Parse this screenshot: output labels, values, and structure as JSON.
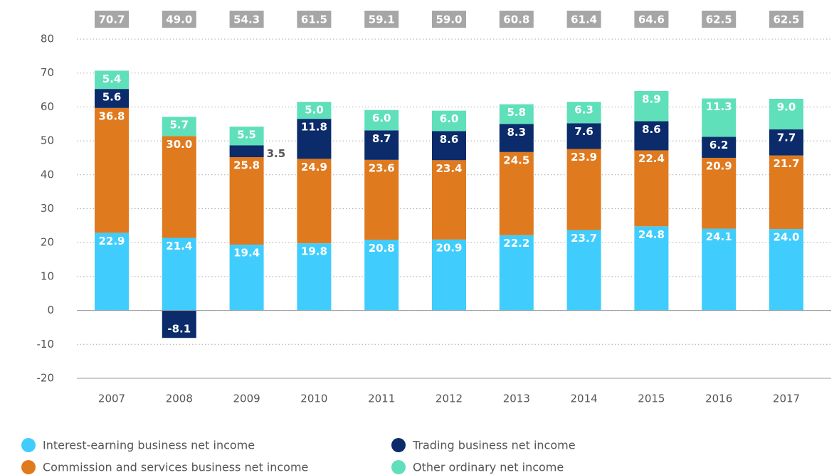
{
  "chart_data": {
    "type": "stacked-bar",
    "categories": [
      "2007",
      "2008",
      "2009",
      "2010",
      "2011",
      "2012",
      "2013",
      "2014",
      "2015",
      "2016",
      "2017"
    ],
    "series": [
      {
        "name": "Interest-earning business net income",
        "color": "#40cdfd",
        "values": [
          22.9,
          21.4,
          19.4,
          19.8,
          20.8,
          20.9,
          22.2,
          23.7,
          24.8,
          24.1,
          24.0
        ],
        "value_labels": [
          "22.9",
          "21.4",
          "19.4",
          "19.8",
          "20.8",
          "20.9",
          "22.2",
          "23.7",
          "24.8",
          "24.1",
          "24.0"
        ]
      },
      {
        "name": "Commission and services business net income",
        "color": "#e07a1f",
        "values": [
          36.8,
          30.0,
          25.8,
          24.9,
          23.6,
          23.4,
          24.5,
          23.9,
          22.4,
          20.9,
          21.7
        ],
        "value_labels": [
          "36.8",
          "30.0",
          "25.8",
          "24.9",
          "23.6",
          "23.4",
          "24.5",
          "23.9",
          "22.4",
          "20.9",
          "21.7"
        ]
      },
      {
        "name": "Trading business net income",
        "color": "#0b2b6a",
        "values": [
          5.6,
          -8.1,
          3.5,
          11.8,
          8.7,
          8.6,
          8.3,
          7.6,
          8.6,
          6.2,
          7.7
        ],
        "value_labels": [
          "5.6",
          "-8.1",
          "3.5",
          "11.8",
          "8.7",
          "8.6",
          "8.3",
          "7.6",
          "8.6",
          "6.2",
          "7.7"
        ]
      },
      {
        "name": "Other ordinary net income",
        "color": "#5fe0ba",
        "values": [
          5.4,
          5.7,
          5.5,
          5.0,
          6.0,
          6.0,
          5.8,
          6.3,
          8.9,
          11.3,
          9.0
        ],
        "value_labels": [
          "5.4",
          "5.7",
          "5.5",
          "5.0",
          "6.0",
          "6.0",
          "5.8",
          "6.3",
          "8.9",
          "11.3",
          "9.0"
        ]
      }
    ],
    "totals": {
      "color": "#a6a6a6",
      "values": [
        70.7,
        49.0,
        54.3,
        61.5,
        59.1,
        59.0,
        60.8,
        61.4,
        64.6,
        62.5,
        62.5
      ],
      "value_labels": [
        "70.7",
        "49.0",
        "54.3",
        "61.5",
        "59.1",
        "59.0",
        "60.8",
        "61.4",
        "64.6",
        "62.5",
        "62.5"
      ]
    },
    "ylim": [
      -20,
      80
    ],
    "yticks": [
      -20,
      -10,
      0,
      10,
      20,
      30,
      40,
      50,
      60,
      70,
      80
    ],
    "grid": true
  }
}
